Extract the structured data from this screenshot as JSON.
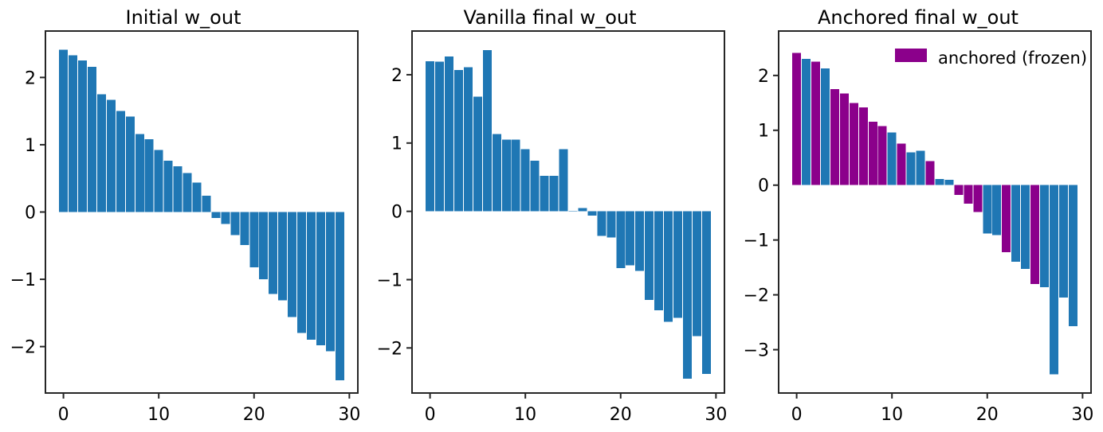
{
  "figure": {
    "background": "#ffffff",
    "text_color": "#000000",
    "axis_color": "#262626"
  },
  "chart_data": [
    {
      "type": "bar",
      "title": "Initial w_out",
      "bar_color": "#1f77b4",
      "categories": [
        0,
        1,
        2,
        3,
        4,
        5,
        6,
        7,
        8,
        9,
        10,
        11,
        12,
        13,
        14,
        15,
        16,
        17,
        18,
        19,
        20,
        21,
        22,
        23,
        24,
        25,
        26,
        27,
        28,
        29
      ],
      "values": [
        2.41,
        2.33,
        2.25,
        2.16,
        1.75,
        1.67,
        1.5,
        1.42,
        1.16,
        1.08,
        0.92,
        0.76,
        0.68,
        0.58,
        0.44,
        0.24,
        -0.09,
        -0.18,
        -0.34,
        -0.49,
        -0.82,
        -1.0,
        -1.22,
        -1.31,
        -1.56,
        -1.8,
        -1.9,
        -1.98,
        -2.07,
        -2.5
      ],
      "xticks": [
        0,
        10,
        20,
        30
      ],
      "yticks": [
        2,
        1,
        0,
        -1,
        -2
      ],
      "xlim": [
        -1.89,
        30.89
      ],
      "ylim": [
        -2.69,
        2.69
      ],
      "grid": false,
      "xlabel": "",
      "ylabel": ""
    },
    {
      "type": "bar",
      "title": "Vanilla final w_out",
      "bar_color": "#1f77b4",
      "categories": [
        0,
        1,
        2,
        3,
        4,
        5,
        6,
        7,
        8,
        9,
        10,
        11,
        12,
        13,
        14,
        15,
        16,
        17,
        18,
        19,
        20,
        21,
        22,
        23,
        24,
        25,
        26,
        27,
        28,
        29
      ],
      "values": [
        2.2,
        2.19,
        2.27,
        2.07,
        2.11,
        1.68,
        2.36,
        1.13,
        1.05,
        1.05,
        0.91,
        0.74,
        0.52,
        0.52,
        0.91,
        0.01,
        0.05,
        -0.06,
        -0.36,
        -0.38,
        -0.83,
        -0.79,
        -0.87,
        -1.3,
        -1.45,
        -1.62,
        -1.56,
        -2.45,
        -1.83,
        -2.38
      ],
      "xticks": [
        0,
        10,
        20,
        30
      ],
      "yticks": [
        2,
        1,
        0,
        -1,
        -2
      ],
      "xlim": [
        -1.89,
        30.89
      ],
      "ylim": [
        -2.66,
        2.64
      ],
      "grid": false,
      "xlabel": "",
      "ylabel": ""
    },
    {
      "type": "bar",
      "title": "Anchored final w_out",
      "bar_color": "#1f77b4",
      "anchored_color": "#8b008b",
      "anchored_indices": [
        0,
        2,
        4,
        5,
        6,
        7,
        8,
        9,
        11,
        14,
        17,
        18,
        19,
        22,
        25
      ],
      "categories": [
        0,
        1,
        2,
        3,
        4,
        5,
        6,
        7,
        8,
        9,
        10,
        11,
        12,
        13,
        14,
        15,
        16,
        17,
        18,
        19,
        20,
        21,
        22,
        23,
        24,
        25,
        26,
        27,
        28,
        29
      ],
      "values": [
        2.41,
        2.3,
        2.25,
        2.13,
        1.75,
        1.67,
        1.5,
        1.42,
        1.16,
        1.08,
        0.96,
        0.76,
        0.6,
        0.63,
        0.44,
        0.11,
        0.1,
        -0.18,
        -0.34,
        -0.49,
        -0.88,
        -0.91,
        -1.22,
        -1.4,
        -1.53,
        -1.8,
        -1.86,
        -3.45,
        -2.05,
        -2.57
      ],
      "xticks": [
        0,
        10,
        20,
        30
      ],
      "yticks": [
        2,
        1,
        0,
        -1,
        -2,
        -3
      ],
      "xlim": [
        -1.89,
        30.89
      ],
      "ylim": [
        -3.79,
        2.81
      ],
      "grid": false,
      "xlabel": "",
      "ylabel": "",
      "legend": {
        "label": "anchored (frozen)",
        "color": "#8b008b",
        "position": "upper right"
      }
    }
  ]
}
